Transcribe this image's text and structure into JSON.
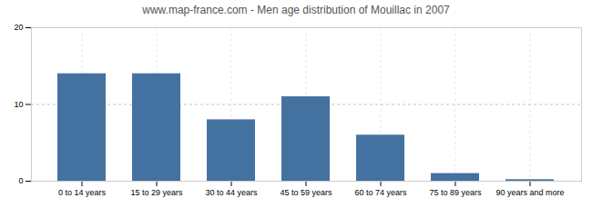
{
  "chart_data": {
    "type": "bar",
    "title": "www.map-france.com - Men age distribution of Mouillac in 2007",
    "categories": [
      "0 to 14 years",
      "15 to 29 years",
      "30 to 44 years",
      "45 to 59 years",
      "60 to 74 years",
      "75 to 89 years",
      "90 years and more"
    ],
    "values": [
      14,
      14,
      8,
      11,
      6,
      1,
      0.2
    ],
    "color": "#4472a0",
    "ylim": [
      0,
      20
    ],
    "yticks": [
      0,
      10,
      20
    ],
    "grid": true
  }
}
